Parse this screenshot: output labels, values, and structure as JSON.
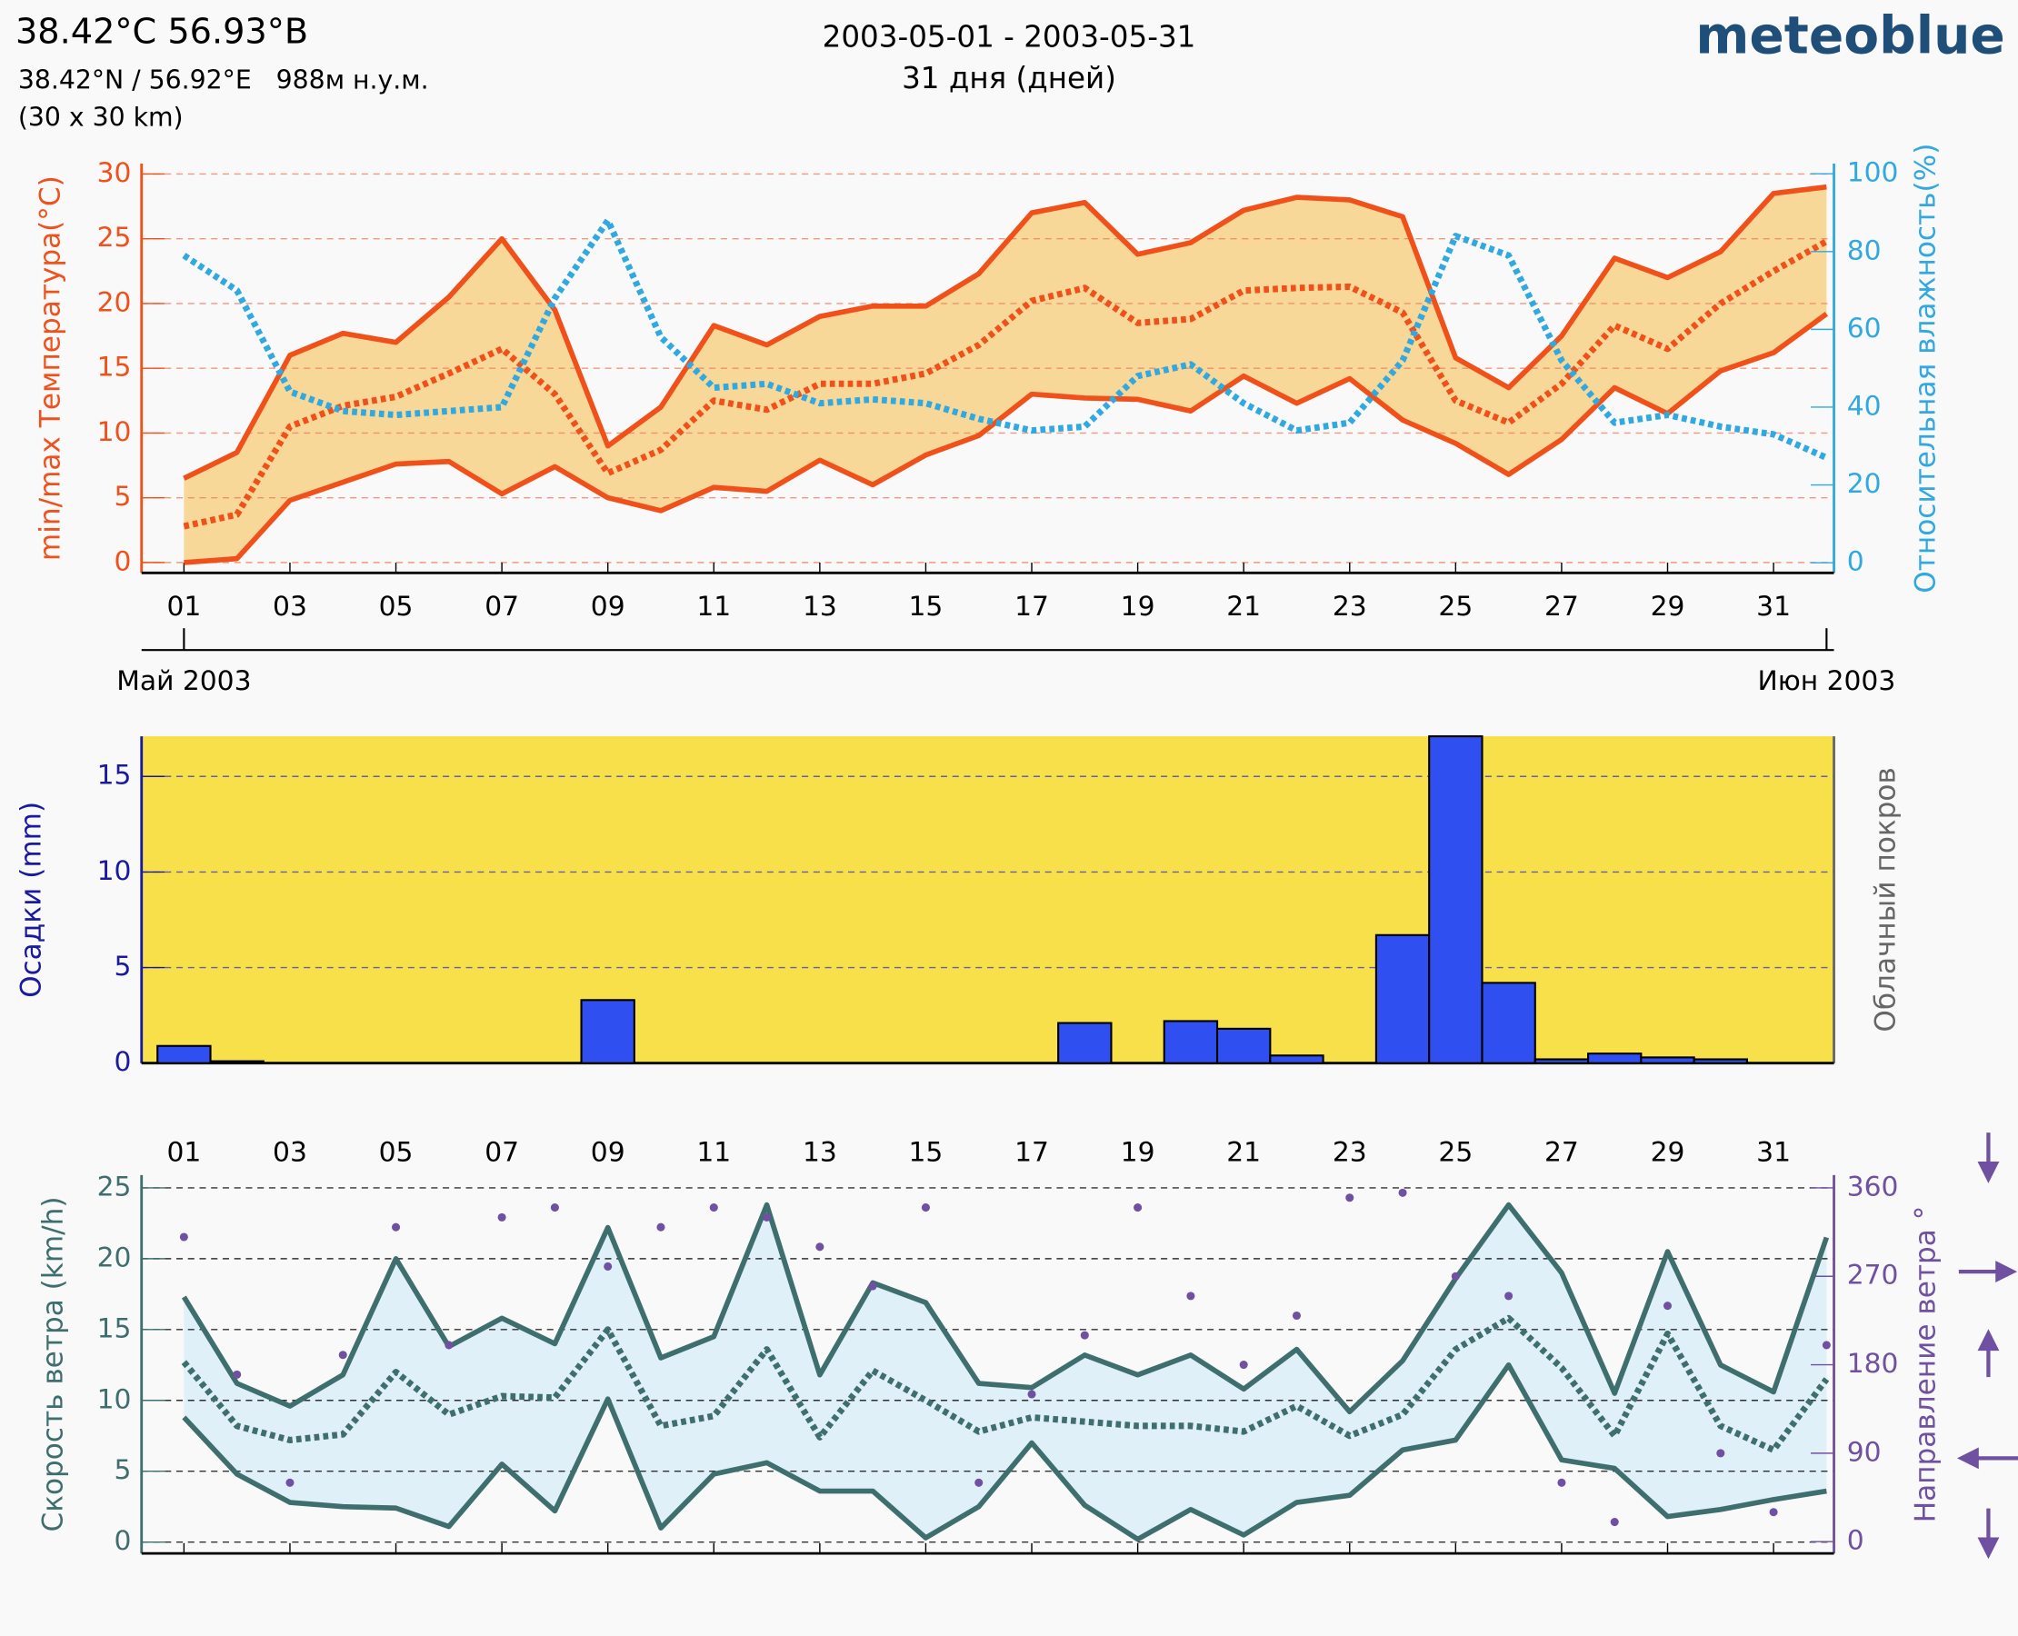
{
  "header": {
    "title": "38.42°C 56.93°B",
    "coords": "38.42°N / 56.92°E   988м н.у.м.",
    "resolution": "(30 x 30 km)",
    "period": "2003-05-01 - 2003-05-31",
    "days": "31 дня (дней)",
    "brand": "meteoblue"
  },
  "chart_data": [
    {
      "type": "line",
      "ylabel": "min/max Температура(°C)",
      "y2label": "Относительная влажность(%)",
      "axis_color": "#f0501a",
      "axis2_color": "#30a8e0",
      "grid": true,
      "grid_color": "#f08060",
      "fill_between": [
        0,
        1
      ],
      "fill_color": "#f8d898",
      "xlim": [
        0.2,
        32.14
      ],
      "ylim": [
        -0.8,
        30.8
      ],
      "y2lim": [
        -2.6,
        102.6
      ],
      "xticks": [
        {
          "value": 1,
          "label": "01"
        },
        {
          "value": 3,
          "label": "03"
        },
        {
          "value": 5,
          "label": "05"
        },
        {
          "value": 7,
          "label": "07"
        },
        {
          "value": 9,
          "label": "09"
        },
        {
          "value": 11,
          "label": "11"
        },
        {
          "value": 13,
          "label": "13"
        },
        {
          "value": 15,
          "label": "15"
        },
        {
          "value": 17,
          "label": "17"
        },
        {
          "value": 19,
          "label": "19"
        },
        {
          "value": 21,
          "label": "21"
        },
        {
          "value": 23,
          "label": "23"
        },
        {
          "value": 25,
          "label": "25"
        },
        {
          "value": 27,
          "label": "27"
        },
        {
          "value": 29,
          "label": "29"
        },
        {
          "value": 31,
          "label": "31"
        }
      ],
      "months": [
        {
          "value": 1,
          "label": "Май 2003"
        },
        {
          "value": 32,
          "label": "Июн 2003"
        }
      ],
      "yticks": [
        0,
        5,
        10,
        15,
        20,
        25,
        30
      ],
      "y2ticks": [
        0,
        20,
        40,
        60,
        80,
        100
      ],
      "x": [
        1,
        2,
        3,
        4,
        5,
        6,
        7,
        8,
        9,
        10,
        11,
        12,
        13,
        14,
        15,
        16,
        17,
        18,
        19,
        20,
        21,
        22,
        23,
        24,
        25,
        26,
        27,
        28,
        29,
        30,
        31,
        32
      ],
      "series": [
        {
          "color": "#f0501a",
          "values": [
            6.5,
            8.5,
            16,
            17.7,
            17,
            20.5,
            25,
            19.5,
            9,
            12,
            18.3,
            16.8,
            19,
            19.8,
            19.8,
            22.3,
            27,
            27.8,
            23.8,
            24.7,
            27.2,
            28.2,
            28,
            26.7,
            15.8,
            13.5,
            17.5,
            23.5,
            22,
            24,
            28.5,
            29
          ]
        },
        {
          "color": "#f0501a",
          "values": [
            0,
            0.3,
            4.8,
            6.2,
            7.6,
            7.8,
            5.3,
            7.4,
            5,
            4,
            5.8,
            5.5,
            7.9,
            6,
            8.3,
            9.8,
            13,
            12.7,
            12.6,
            11.7,
            14.4,
            12.3,
            14.2,
            11,
            9.2,
            6.8,
            9.5,
            13.5,
            11.5,
            14.8,
            16.2,
            19.2
          ]
        },
        {
          "color": "#f0501a",
          "dashed": true,
          "values": [
            2.8,
            3.7,
            10.5,
            12.1,
            12.8,
            14.6,
            16.5,
            13,
            6.9,
            8.7,
            12.5,
            11.8,
            13.8,
            13.8,
            14.6,
            16.8,
            20.2,
            21.2,
            18.5,
            18.8,
            21,
            21.2,
            21.3,
            19.3,
            12.5,
            10.8,
            13.8,
            18.3,
            16.5,
            20,
            22.5,
            24.8
          ]
        },
        {
          "color": "#30a8e0",
          "dashed": true,
          "axis": "y2",
          "values": [
            79,
            70,
            44,
            39,
            38,
            39,
            40,
            68,
            88,
            58,
            45,
            46,
            41,
            42,
            41,
            37,
            34,
            35,
            48,
            51,
            41,
            34,
            36,
            52,
            84,
            79,
            52,
            36,
            38,
            35,
            33,
            27
          ]
        }
      ]
    },
    {
      "type": "bar",
      "ylabel": "Осадки (mm)",
      "y2label": "Облачный покров",
      "axis_color": "#1a1aa0",
      "axis2_color": "#666666",
      "grid": true,
      "grid_color": "#4040c0",
      "background": "#f7e04a",
      "color": "#2f4ff0",
      "xlim": [
        0.2,
        32.14
      ],
      "ylim": [
        0,
        17.1
      ],
      "yticks": [
        0,
        5,
        10,
        15
      ],
      "x": [
        1,
        2,
        3,
        4,
        5,
        6,
        7,
        8,
        9,
        10,
        11,
        12,
        13,
        14,
        15,
        16,
        17,
        18,
        19,
        20,
        21,
        22,
        23,
        24,
        25,
        26,
        27,
        28,
        29,
        30,
        31
      ],
      "values": [
        0.9,
        0.1,
        0,
        0,
        0,
        0,
        0,
        0,
        3.3,
        0,
        0,
        0,
        0,
        0,
        0,
        0,
        0,
        2.1,
        0,
        2.2,
        1.8,
        0.4,
        0,
        6.7,
        17.1,
        4.2,
        0.2,
        0.5,
        0.3,
        0.2,
        0
      ]
    },
    {
      "type": "line",
      "ylabel": "Скорость ветра (km/h)",
      "y2label": "Направление ветра °",
      "axis_color": "#3f6e6e",
      "axis2_color": "#7050a0",
      "grid": true,
      "grid_color": "#000000",
      "fill_between": [
        0,
        1
      ],
      "fill_color": "#dff0f8",
      "xlim": [
        0.2,
        32.14
      ],
      "ylim": [
        -0.8,
        25.9
      ],
      "y2lim": [
        -12,
        373
      ],
      "xticks": [
        {
          "value": 1,
          "label": "01"
        },
        {
          "value": 3,
          "label": "03"
        },
        {
          "value": 5,
          "label": "05"
        },
        {
          "value": 7,
          "label": "07"
        },
        {
          "value": 9,
          "label": "09"
        },
        {
          "value": 11,
          "label": "11"
        },
        {
          "value": 13,
          "label": "13"
        },
        {
          "value": 15,
          "label": "15"
        },
        {
          "value": 17,
          "label": "17"
        },
        {
          "value": 19,
          "label": "19"
        },
        {
          "value": 21,
          "label": "21"
        },
        {
          "value": 23,
          "label": "23"
        },
        {
          "value": 25,
          "label": "25"
        },
        {
          "value": 27,
          "label": "27"
        },
        {
          "value": 29,
          "label": "29"
        },
        {
          "value": 31,
          "label": "31"
        }
      ],
      "yticks": [
        0,
        5,
        10,
        15,
        20,
        25
      ],
      "y2ticks": [
        0,
        90,
        180,
        270,
        360
      ],
      "x": [
        1,
        2,
        3,
        4,
        5,
        6,
        7,
        8,
        9,
        10,
        11,
        12,
        13,
        14,
        15,
        16,
        17,
        18,
        19,
        20,
        21,
        22,
        23,
        24,
        25,
        26,
        27,
        28,
        29,
        30,
        31,
        32
      ],
      "series": [
        {
          "color": "#3f6e6e",
          "values": [
            17.3,
            11.2,
            9.6,
            11.8,
            20,
            13.8,
            15.8,
            14,
            22.2,
            13,
            14.5,
            23.8,
            11.8,
            18.3,
            16.9,
            11.2,
            10.9,
            13.2,
            11.8,
            13.2,
            10.8,
            13.6,
            9.2,
            12.8,
            18.6,
            23.8,
            19,
            10.5,
            20.5,
            12.5,
            10.6,
            21.5
          ]
        },
        {
          "color": "#3f6e6e",
          "values": [
            8.8,
            4.8,
            2.8,
            2.5,
            2.4,
            1.1,
            5.5,
            2.2,
            10.1,
            1,
            4.8,
            5.6,
            3.6,
            3.6,
            0.3,
            2.5,
            7,
            2.6,
            0.2,
            2.3,
            0.5,
            2.8,
            3.3,
            6.5,
            7.2,
            12.5,
            5.8,
            5.2,
            1.8,
            2.3,
            3,
            3.6
          ]
        },
        {
          "color": "#3f6e6e",
          "dashed": true,
          "values": [
            12.7,
            8.2,
            7.2,
            7.6,
            12,
            9,
            10.3,
            10.2,
            15,
            8.2,
            8.9,
            13.6,
            7.4,
            12.1,
            10,
            7.8,
            8.8,
            8.5,
            8.2,
            8.2,
            7.8,
            9.6,
            7.5,
            9,
            13.6,
            15.8,
            12.3,
            7.5,
            14.7,
            8.2,
            6.5,
            11.5
          ]
        },
        {
          "color": "#7050a0",
          "type": "scatter",
          "axis": "y2",
          "values": [
            310,
            170,
            60,
            190,
            320,
            200,
            330,
            340,
            280,
            320,
            340,
            330,
            300,
            260,
            340,
            60,
            150,
            210,
            340,
            250,
            180,
            230,
            350,
            355,
            270,
            250,
            60,
            20,
            240,
            90,
            30,
            200
          ]
        }
      ]
    }
  ]
}
